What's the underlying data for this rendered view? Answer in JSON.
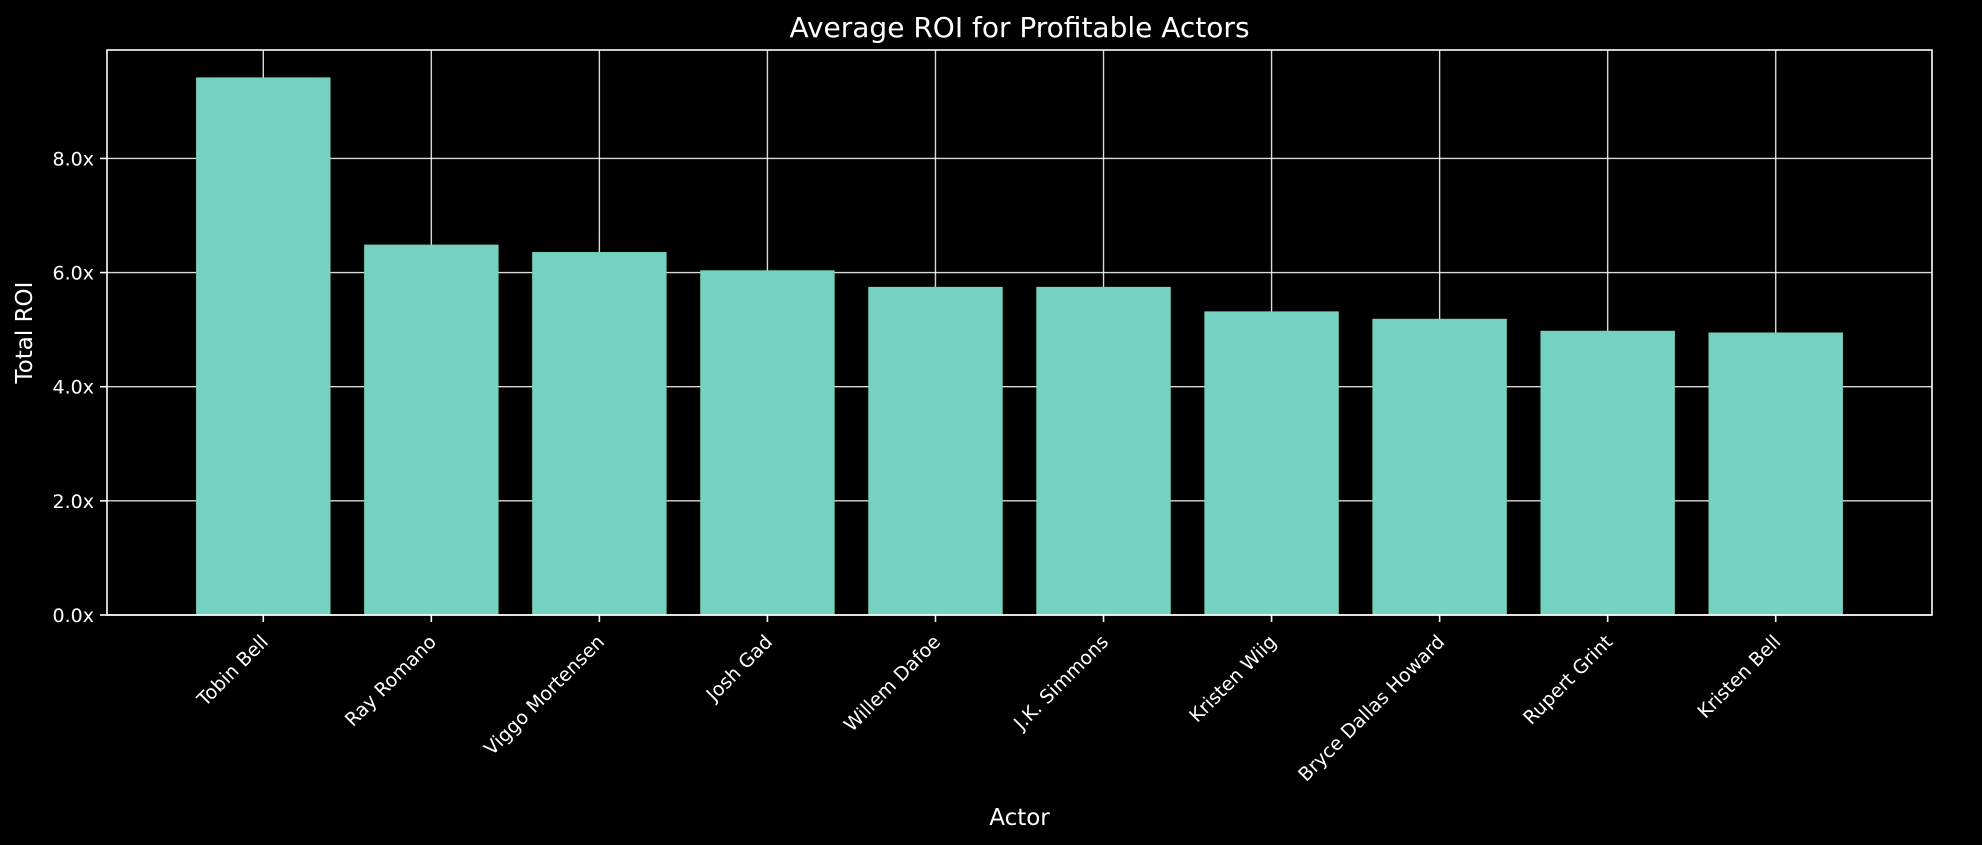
{
  "chart_data": {
    "type": "bar",
    "title": "Average ROI for Profitable Actors",
    "xlabel": "Actor",
    "ylabel": "Total ROI",
    "categories": [
      "Tobin Bell",
      "Ray Romano",
      "Viggo Mortensen",
      "Josh Gad",
      "Willem Dafoe",
      "J.K. Simmons",
      "Kristen Wiig",
      "Bryce Dallas Howard",
      "Rupert Grint",
      "Kristen Bell"
    ],
    "values": [
      9.42,
      6.49,
      6.36,
      6.04,
      5.75,
      5.75,
      5.32,
      5.19,
      4.98,
      4.95
    ],
    "ylim": [
      0,
      9.9
    ],
    "yticks": [
      0,
      2,
      4,
      6,
      8
    ],
    "ytick_labels": [
      "0.0x",
      "2.0x",
      "4.0x",
      "6.0x",
      "8.0x"
    ],
    "grid": true,
    "bar_color": "#76d2c0",
    "background": "#000000",
    "foreground": "#ffffff"
  }
}
